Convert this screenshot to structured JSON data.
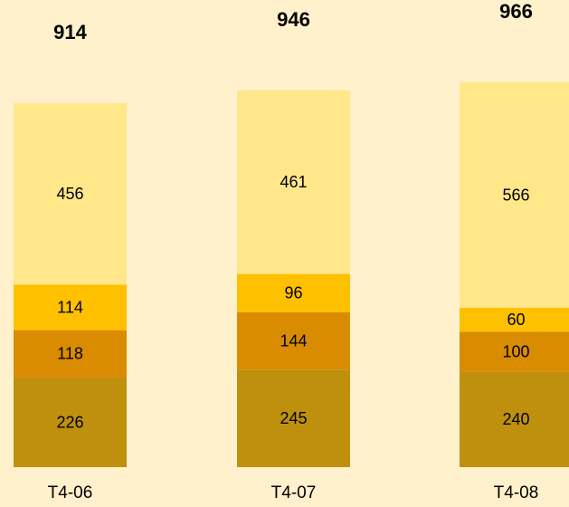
{
  "chart_data": {
    "type": "bar",
    "stacked": true,
    "categories": [
      "T4-06",
      "T4-07",
      "T4-08"
    ],
    "totals": [
      914,
      946,
      966
    ],
    "series": [
      {
        "values": [
          226,
          245,
          240
        ],
        "color": "#bf900d"
      },
      {
        "values": [
          118,
          144,
          100
        ],
        "color": "#d98c00"
      },
      {
        "values": [
          114,
          96,
          60
        ],
        "color": "#ffc000"
      },
      {
        "values": [
          456,
          461,
          566
        ],
        "color": "#ffe78a"
      }
    ],
    "title": "",
    "xlabel": "",
    "ylabel": "",
    "grid": false,
    "legend": false
  },
  "colors": {
    "background": "#fff1cc",
    "label_text": "#000000"
  }
}
